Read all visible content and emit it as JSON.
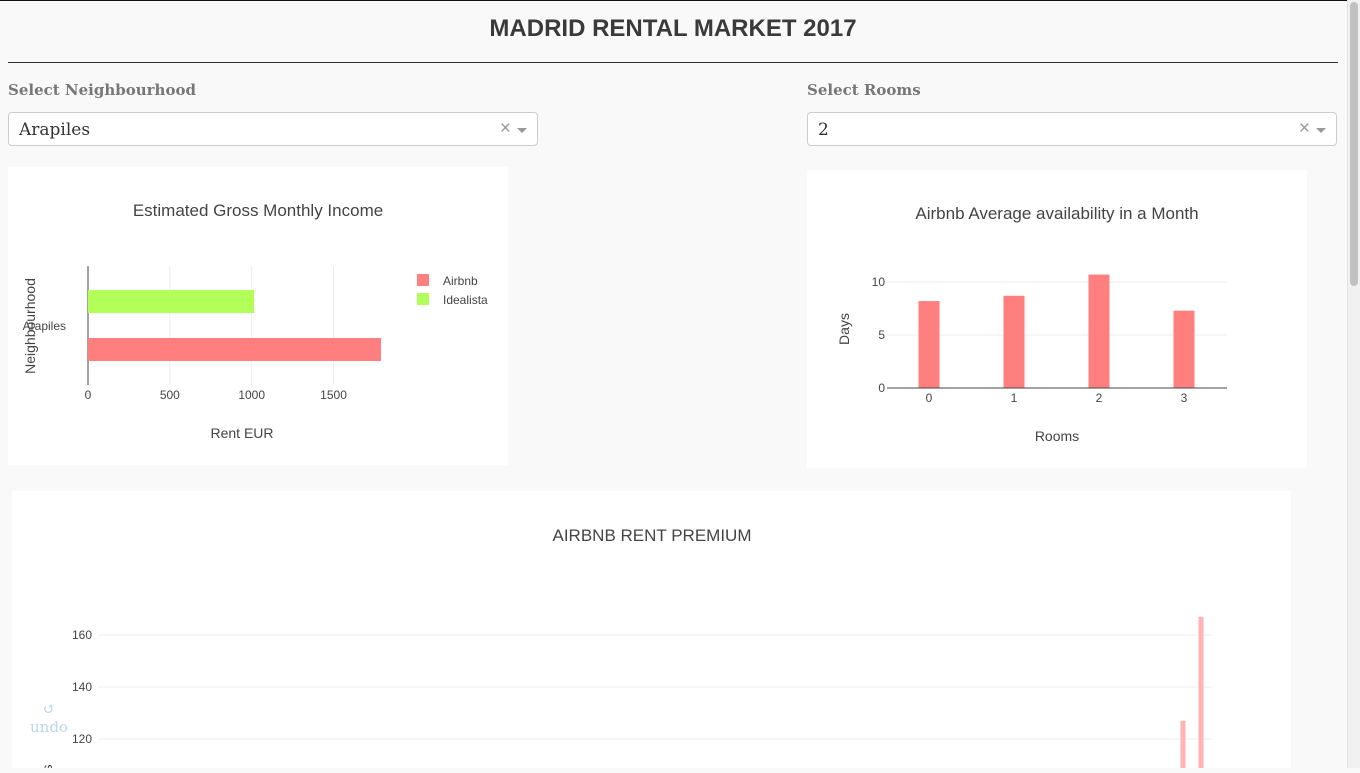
{
  "page_title": "MADRID RENTAL MARKET 2017",
  "filters": {
    "neighbourhood": {
      "label": "Select Neighbourhood",
      "value": "Arapiles",
      "clear_symbol": "×"
    },
    "rooms": {
      "label": "Select Rooms",
      "value": "2",
      "clear_symbol": "×"
    }
  },
  "undo": {
    "symbol": "↺",
    "label": "undo"
  },
  "colors": {
    "airbnb": "#ff7f7f",
    "idealista": "#b3ff5a",
    "premium": "#ffb3b3"
  },
  "chart_data": [
    {
      "type": "bar",
      "orientation": "horizontal",
      "title": "Estimated Gross Monthly Income",
      "xlabel": "Rent EUR",
      "ylabel": "Neighbourhood",
      "categories": [
        "Arapiles"
      ],
      "xlim": [
        0,
        1800
      ],
      "xticks": [
        0,
        500,
        1000,
        1500
      ],
      "series": [
        {
          "name": "Airbnb",
          "values": [
            1790
          ]
        },
        {
          "name": "Idealista",
          "values": [
            1015
          ]
        }
      ],
      "legend": "right"
    },
    {
      "type": "bar",
      "title": "Airbnb Average availability in a Month",
      "xlabel": "Rooms",
      "ylabel": "Days",
      "categories": [
        "0",
        "1",
        "2",
        "3"
      ],
      "values": [
        8.2,
        8.7,
        10.7,
        7.3
      ],
      "ylim": [
        0,
        11.5
      ],
      "yticks": [
        0,
        5,
        10
      ]
    },
    {
      "type": "bar",
      "title": "AIRBNB RENT PREMIUM",
      "ylabel": "s",
      "yticks": [
        120,
        140,
        160
      ],
      "visible_values": [
        127,
        167
      ]
    }
  ]
}
